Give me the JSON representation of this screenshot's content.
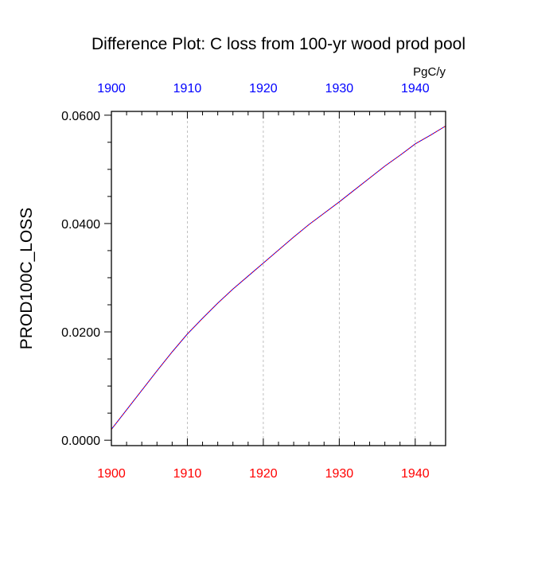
{
  "chart_data": {
    "type": "line",
    "title": "Difference Plot: C loss from 100-yr wood prod pool",
    "units": "PgC/y",
    "ylabel": "PROD100C_LOSS",
    "xlabel": "",
    "xlim": [
      1900,
      1944
    ],
    "ylim": [
      -0.001,
      0.0607
    ],
    "x_ticks": [
      1900,
      1910,
      1920,
      1930,
      1940
    ],
    "x_tick_labels": [
      "1900",
      "1910",
      "1920",
      "1930",
      "1940"
    ],
    "y_ticks": [
      0.0,
      0.02,
      0.04,
      0.06
    ],
    "y_tick_labels": [
      "0.0000",
      "0.0200",
      "0.0400",
      "0.0600"
    ],
    "grid": "vertical dashed at major x ticks",
    "colors": {
      "top_axis_labels": "#0000ff",
      "bottom_axis_labels": "#ff0000",
      "line_solid": "#0000ff",
      "line_dashed": "#ff0000",
      "grid": "#b0b0b0"
    },
    "series": [
      {
        "x": [
          1900,
          1902,
          1904,
          1906,
          1908,
          1910,
          1912,
          1914,
          1916,
          1918,
          1920,
          1922,
          1924,
          1926,
          1928,
          1930,
          1932,
          1934,
          1936,
          1938,
          1940,
          1942,
          1944
        ],
        "values": [
          0.002,
          0.0056,
          0.0092,
          0.0128,
          0.0163,
          0.0196,
          0.0225,
          0.0253,
          0.0279,
          0.0303,
          0.0327,
          0.0351,
          0.0375,
          0.0398,
          0.0419,
          0.044,
          0.0462,
          0.0484,
          0.0506,
          0.0526,
          0.0547,
          0.0563,
          0.058
        ]
      }
    ]
  }
}
